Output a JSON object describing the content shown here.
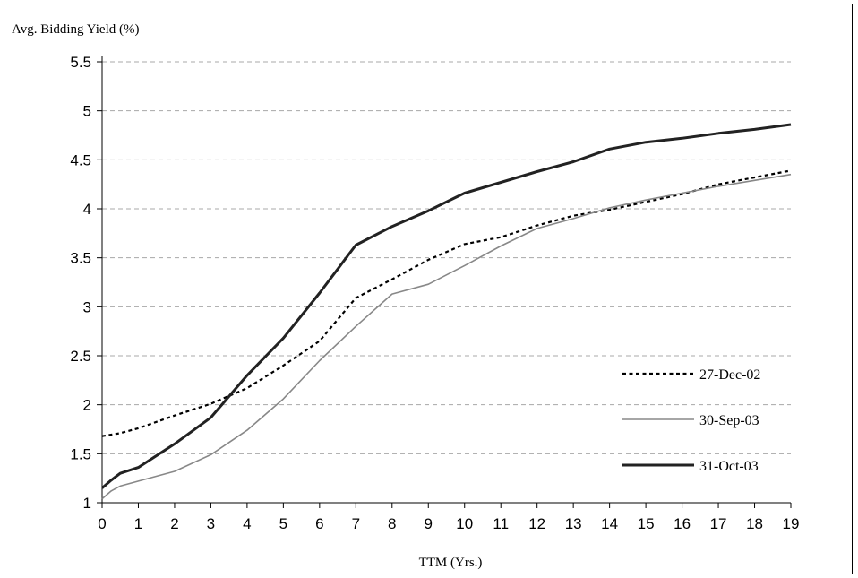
{
  "chart_data": {
    "type": "line",
    "ylabel": "Avg. Bidding Yield (%)",
    "xlabel": "TTM (Yrs.)",
    "xlim": [
      0,
      19
    ],
    "ylim": [
      1,
      5.5
    ],
    "x_ticks": [
      0,
      1,
      2,
      3,
      4,
      5,
      6,
      7,
      8,
      9,
      10,
      11,
      12,
      13,
      14,
      15,
      16,
      17,
      18,
      19
    ],
    "y_ticks": [
      1,
      1.5,
      2,
      2.5,
      3,
      3.5,
      4,
      4.5,
      5,
      5.5
    ],
    "y_tick_labels": [
      "1",
      "1.5",
      "2",
      "2.5",
      "3",
      "3.5",
      "4",
      "4.5",
      "5",
      "5.5"
    ],
    "grid": "horizontal dashed",
    "legend_position": "right",
    "series": [
      {
        "name": "27-Dec-02",
        "style": "dotted",
        "color": "#000000",
        "x": [
          0,
          0.5,
          1,
          2,
          3,
          4,
          5,
          6,
          7,
          8,
          9,
          10,
          11,
          12,
          13,
          14,
          15,
          16,
          17,
          18,
          19
        ],
        "y": [
          1.68,
          1.71,
          1.76,
          1.89,
          2.01,
          2.17,
          2.4,
          2.65,
          3.09,
          3.28,
          3.48,
          3.64,
          3.71,
          3.83,
          3.93,
          3.99,
          4.07,
          4.15,
          4.25,
          4.32,
          4.39
        ]
      },
      {
        "name": "30-Sep-03",
        "style": "thin",
        "color": "#888888",
        "x": [
          0,
          0.25,
          0.5,
          1,
          2,
          3,
          4,
          5,
          6,
          7,
          8,
          9,
          10,
          11,
          12,
          13,
          14,
          15,
          16,
          17,
          18,
          19
        ],
        "y": [
          1.04,
          1.12,
          1.17,
          1.22,
          1.32,
          1.49,
          1.74,
          2.06,
          2.45,
          2.8,
          3.13,
          3.23,
          3.42,
          3.62,
          3.8,
          3.9,
          4.01,
          4.09,
          4.16,
          4.23,
          4.29,
          4.35
        ]
      },
      {
        "name": "31-Oct-03",
        "style": "thick",
        "color": "#222222",
        "x": [
          0,
          0.25,
          0.5,
          1,
          2,
          3,
          4,
          5,
          6,
          7,
          8,
          9,
          10,
          11,
          12,
          13,
          14,
          15,
          16,
          17,
          18,
          19
        ],
        "y": [
          1.15,
          1.23,
          1.3,
          1.36,
          1.6,
          1.87,
          2.3,
          2.68,
          3.14,
          3.63,
          3.82,
          3.98,
          4.16,
          4.27,
          4.38,
          4.48,
          4.61,
          4.68,
          4.72,
          4.77,
          4.81,
          4.86
        ]
      }
    ]
  }
}
